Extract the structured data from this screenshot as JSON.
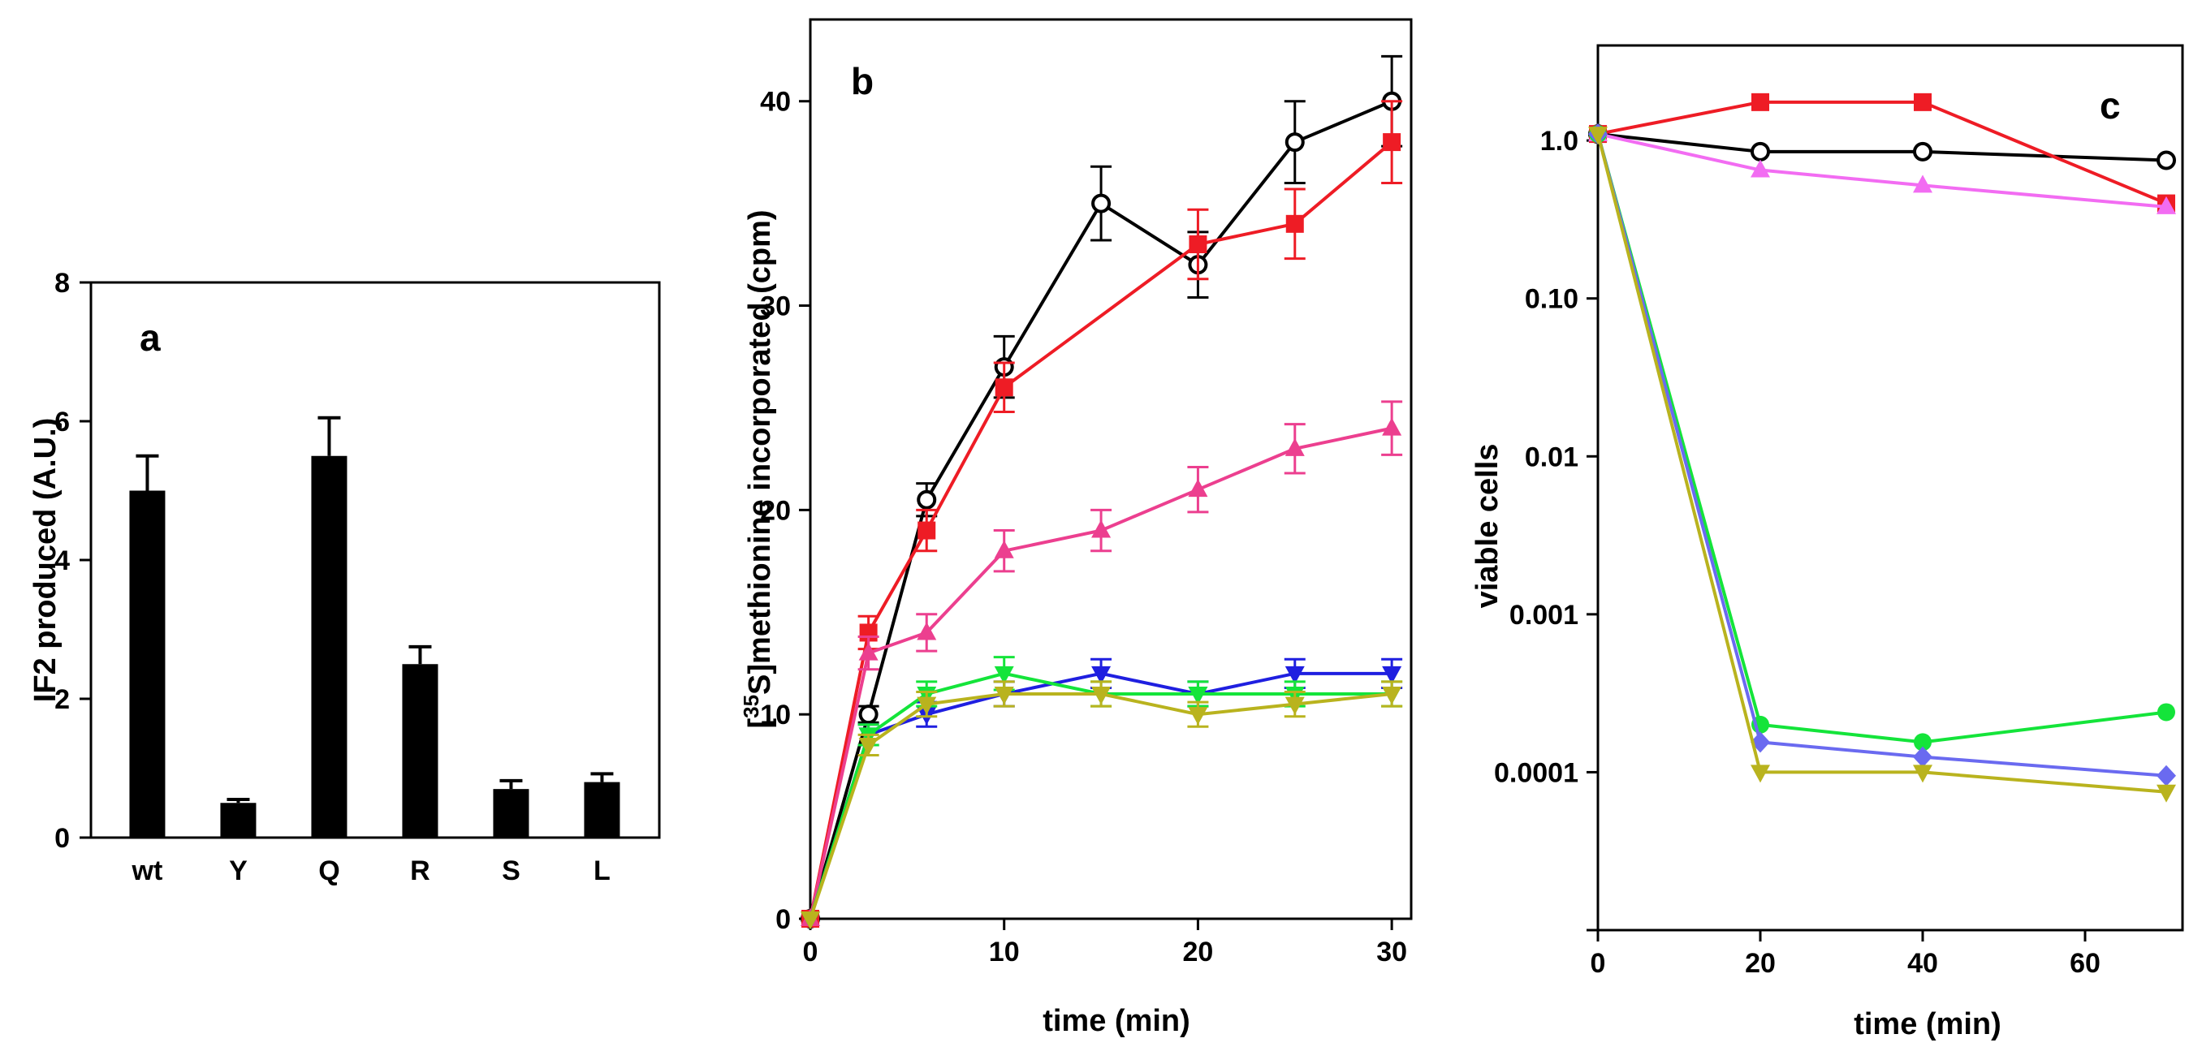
{
  "chart_data": [
    {
      "type": "bar",
      "panel": "a",
      "title": "",
      "xlabel": "",
      "ylabel": "IF2 produced (A.U.)",
      "ylim": [
        0,
        8
      ],
      "yticks": [
        0,
        2,
        4,
        6,
        8
      ],
      "categories": [
        "wt",
        "Y",
        "Q",
        "R",
        "S",
        "L"
      ],
      "values": [
        5.0,
        0.5,
        5.5,
        2.5,
        0.7,
        0.8
      ],
      "errors": [
        0.5,
        0.05,
        0.55,
        0.25,
        0.12,
        0.12
      ],
      "bar_color": "#000000"
    },
    {
      "type": "line",
      "panel": "b",
      "title": "",
      "xlabel": "time (min)",
      "ylabel_prefix": "[",
      "ylabel_sup": "35",
      "ylabel_rest": "S]methionine incorporated (cpm)",
      "xlim": [
        0,
        31
      ],
      "ylim": [
        0,
        44
      ],
      "xticks": [
        0,
        10,
        20,
        30
      ],
      "yticks": [
        0,
        10,
        20,
        30,
        40
      ],
      "series": [
        {
          "name": "black circles",
          "color": "#000000",
          "marker": "circle-open",
          "x": [
            0,
            3,
            6,
            10,
            15,
            20,
            25,
            30
          ],
          "y": [
            0,
            10,
            20.5,
            27,
            35,
            32,
            38,
            40
          ],
          "err": [
            0,
            0.4,
            0.8,
            1.5,
            1.8,
            1.6,
            2.0,
            2.2
          ]
        },
        {
          "name": "red squares",
          "color": "#ee1c25",
          "marker": "square",
          "x": [
            0,
            3,
            6,
            10,
            20,
            25,
            30
          ],
          "y": [
            0,
            14,
            19,
            26,
            33,
            34,
            38
          ],
          "err": [
            0,
            0.8,
            1.0,
            1.2,
            1.7,
            1.7,
            2.0
          ]
        },
        {
          "name": "pink triangles",
          "color": "#ec3f8f",
          "marker": "triangle-up",
          "x": [
            0,
            3,
            6,
            10,
            15,
            20,
            25,
            30
          ],
          "y": [
            0,
            13,
            14,
            18,
            19,
            21,
            23,
            24
          ],
          "err": [
            0,
            0.8,
            0.9,
            1.0,
            1.0,
            1.1,
            1.2,
            1.3
          ]
        },
        {
          "name": "blue",
          "color": "#1f1fe0",
          "marker": "triangle-down",
          "x": [
            0,
            3,
            6,
            10,
            15,
            20,
            25,
            30
          ],
          "y": [
            0,
            9,
            10,
            11,
            12,
            11,
            12,
            12
          ],
          "err": [
            0,
            0.5,
            0.6,
            0.6,
            0.7,
            0.6,
            0.7,
            0.7
          ]
        },
        {
          "name": "green",
          "color": "#14e43a",
          "marker": "triangle-down",
          "x": [
            0,
            3,
            6,
            10,
            15,
            20,
            25,
            30
          ],
          "y": [
            0,
            9,
            11,
            12,
            11,
            11,
            11,
            11
          ],
          "err": [
            0,
            0.5,
            0.6,
            0.8,
            0.6,
            0.6,
            0.6,
            0.6
          ]
        },
        {
          "name": "olive",
          "color": "#b9b31e",
          "marker": "triangle-down",
          "x": [
            0,
            3,
            6,
            10,
            15,
            20,
            25,
            30
          ],
          "y": [
            0,
            8.5,
            10.5,
            11,
            11,
            10,
            10.5,
            11
          ],
          "err": [
            0,
            0.5,
            0.6,
            0.6,
            0.6,
            0.6,
            0.6,
            0.6
          ]
        }
      ]
    },
    {
      "type": "line",
      "panel": "c",
      "title": "",
      "xlabel": "time (min)",
      "ylabel": "viable cells",
      "yscale": "log",
      "xlim": [
        0,
        72
      ],
      "ylim": [
        1e-05,
        4
      ],
      "xticks": [
        0,
        20,
        40,
        60
      ],
      "yticks": [
        1.0,
        0.1,
        0.01,
        0.001,
        0.0001
      ],
      "ytick_labels": [
        "1.0",
        "0.10",
        "0.01",
        "0.001",
        "0.0001"
      ],
      "series": [
        {
          "name": "black circles",
          "color": "#000000",
          "marker": "circle-open",
          "x": [
            0,
            20,
            40,
            70
          ],
          "y": [
            1.1,
            0.85,
            0.85,
            0.75
          ]
        },
        {
          "name": "red squares",
          "color": "#ee1c25",
          "marker": "square",
          "x": [
            0,
            20,
            40,
            70
          ],
          "y": [
            1.1,
            1.75,
            1.75,
            0.4
          ]
        },
        {
          "name": "magenta triangles",
          "color": "#f26cf2",
          "marker": "triangle-up",
          "x": [
            0,
            20,
            40,
            70
          ],
          "y": [
            1.1,
            0.65,
            0.52,
            0.38
          ]
        },
        {
          "name": "green",
          "color": "#14e43a",
          "marker": "circle",
          "x": [
            0,
            20,
            40,
            70
          ],
          "y": [
            1.1,
            0.0002,
            0.000155,
            0.00024
          ]
        },
        {
          "name": "blue",
          "color": "#6a6af0",
          "marker": "diamond",
          "x": [
            0,
            20,
            40,
            70
          ],
          "y": [
            1.1,
            0.000155,
            0.000125,
            9.5e-05
          ]
        },
        {
          "name": "olive",
          "color": "#b9b31e",
          "marker": "triangle-down",
          "x": [
            0,
            20,
            40,
            70
          ],
          "y": [
            1.1,
            0.0001,
            0.0001,
            7.5e-05
          ]
        }
      ]
    }
  ]
}
